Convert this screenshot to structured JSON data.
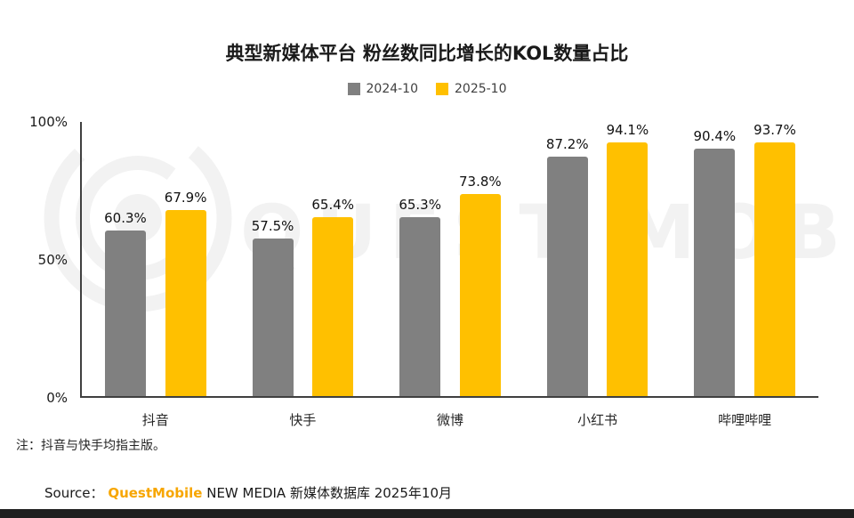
{
  "chart_data": {
    "type": "bar",
    "title": "典型新媒体平台 粉丝数同比增长的KOL数量占比",
    "categories": [
      "抖音",
      "快手",
      "微博",
      "小红书",
      "哔哩哔哩"
    ],
    "series": [
      {
        "name": "2024-10",
        "color": "#808080",
        "values": [
          60.3,
          57.5,
          65.3,
          87.2,
          90.4
        ]
      },
      {
        "name": "2025-10",
        "color": "#FFC000",
        "values": [
          67.9,
          65.4,
          73.8,
          94.1,
          93.7
        ]
      }
    ],
    "value_suffix": "%",
    "ylim": [
      0,
      100
    ],
    "yticks": [
      "100%",
      "50%",
      "0%"
    ],
    "grid": false,
    "legend_position": "top"
  },
  "note": "注：抖音与快手均指主版。",
  "source": {
    "prefix": "Source：",
    "brand": "QuestMobile",
    "suffix": " NEW MEDIA 新媒体数据库 2025年10月"
  },
  "watermark": "QUEST MOBILE",
  "colors": {
    "brand_orange": "#F7A600",
    "bar_gray": "#808080",
    "bar_yellow": "#FFC000",
    "bottom_strip": "#1F1F1F"
  }
}
